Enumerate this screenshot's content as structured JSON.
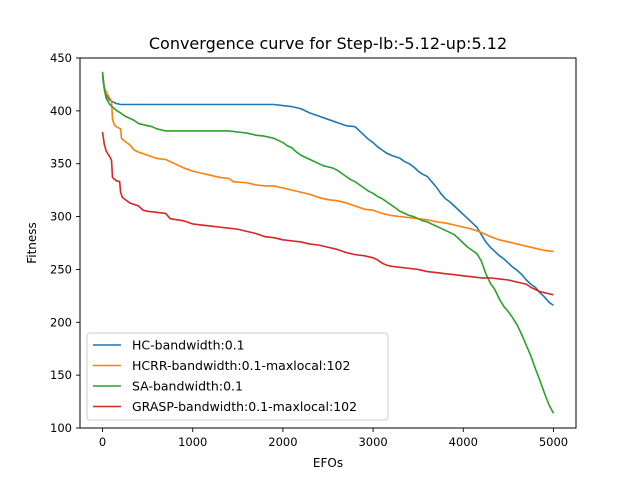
{
  "chart_data": {
    "type": "line",
    "title": "Convergence curve for Step-lb:-5.12-up:5.12",
    "xlabel": "EFOs",
    "ylabel": "Fitness",
    "xlim": [
      -250,
      5250
    ],
    "ylim": [
      100,
      450
    ],
    "xticks": [
      0,
      1000,
      2000,
      3000,
      4000,
      5000
    ],
    "yticks": [
      100,
      150,
      200,
      250,
      300,
      350,
      400,
      450
    ],
    "grid": false,
    "legend_position": "lower-left",
    "series": [
      {
        "name": "HC-bandwidth:0.1",
        "color": "#1f77b4",
        "points": [
          [
            0,
            432
          ],
          [
            20,
            421
          ],
          [
            40,
            415
          ],
          [
            80,
            410
          ],
          [
            150,
            407
          ],
          [
            200,
            406
          ],
          [
            300,
            406
          ],
          [
            500,
            406
          ],
          [
            1000,
            406
          ],
          [
            1500,
            406
          ],
          [
            1900,
            406
          ],
          [
            2000,
            405
          ],
          [
            2100,
            404
          ],
          [
            2200,
            402
          ],
          [
            2300,
            398
          ],
          [
            2400,
            395
          ],
          [
            2500,
            392
          ],
          [
            2600,
            389
          ],
          [
            2700,
            386
          ],
          [
            2800,
            385
          ],
          [
            2850,
            381
          ],
          [
            2900,
            377
          ],
          [
            2950,
            373
          ],
          [
            3000,
            370
          ],
          [
            3050,
            366
          ],
          [
            3100,
            363
          ],
          [
            3150,
            360
          ],
          [
            3200,
            358
          ],
          [
            3300,
            355
          ],
          [
            3350,
            352
          ],
          [
            3400,
            350
          ],
          [
            3450,
            347
          ],
          [
            3500,
            343
          ],
          [
            3550,
            340
          ],
          [
            3600,
            338
          ],
          [
            3650,
            333
          ],
          [
            3700,
            328
          ],
          [
            3750,
            322
          ],
          [
            3800,
            317
          ],
          [
            3850,
            314
          ],
          [
            3900,
            310
          ],
          [
            3950,
            306
          ],
          [
            4000,
            302
          ],
          [
            4050,
            298
          ],
          [
            4100,
            294
          ],
          [
            4150,
            290
          ],
          [
            4200,
            283
          ],
          [
            4250,
            276
          ],
          [
            4300,
            271
          ],
          [
            4350,
            267
          ],
          [
            4400,
            263
          ],
          [
            4450,
            260
          ],
          [
            4500,
            256
          ],
          [
            4550,
            252
          ],
          [
            4600,
            249
          ],
          [
            4650,
            245
          ],
          [
            4700,
            240
          ],
          [
            4750,
            236
          ],
          [
            4800,
            233
          ],
          [
            4850,
            228
          ],
          [
            4900,
            224
          ],
          [
            4950,
            219
          ],
          [
            5000,
            216
          ]
        ]
      },
      {
        "name": "HCRR-bandwidth:0.1-maxlocal:102",
        "color": "#ff7f0e",
        "points": [
          [
            0,
            435
          ],
          [
            20,
            422
          ],
          [
            50,
            416
          ],
          [
            80,
            412
          ],
          [
            100,
            409
          ],
          [
            110,
            392
          ],
          [
            130,
            387
          ],
          [
            150,
            385
          ],
          [
            200,
            383
          ],
          [
            210,
            374
          ],
          [
            250,
            371
          ],
          [
            300,
            368
          ],
          [
            350,
            363
          ],
          [
            400,
            361
          ],
          [
            500,
            358
          ],
          [
            600,
            355
          ],
          [
            700,
            354
          ],
          [
            800,
            350
          ],
          [
            900,
            346
          ],
          [
            1000,
            343
          ],
          [
            1100,
            341
          ],
          [
            1200,
            339
          ],
          [
            1300,
            337
          ],
          [
            1400,
            336
          ],
          [
            1450,
            333
          ],
          [
            1600,
            332
          ],
          [
            1700,
            330
          ],
          [
            1800,
            329
          ],
          [
            1900,
            329
          ],
          [
            2000,
            327
          ],
          [
            2100,
            325
          ],
          [
            2200,
            323
          ],
          [
            2300,
            321
          ],
          [
            2400,
            318
          ],
          [
            2500,
            316
          ],
          [
            2600,
            315
          ],
          [
            2700,
            313
          ],
          [
            2800,
            310
          ],
          [
            2900,
            307
          ],
          [
            3000,
            306
          ],
          [
            3100,
            303
          ],
          [
            3200,
            301
          ],
          [
            3300,
            300
          ],
          [
            3400,
            299
          ],
          [
            3500,
            298
          ],
          [
            3600,
            297
          ],
          [
            3700,
            295
          ],
          [
            3800,
            294
          ],
          [
            3900,
            292
          ],
          [
            4000,
            290
          ],
          [
            4100,
            288
          ],
          [
            4200,
            285
          ],
          [
            4300,
            281
          ],
          [
            4400,
            278
          ],
          [
            4500,
            276
          ],
          [
            4600,
            274
          ],
          [
            4700,
            272
          ],
          [
            4800,
            270
          ],
          [
            4900,
            268
          ],
          [
            5000,
            267
          ]
        ]
      },
      {
        "name": "SA-bandwidth:0.1",
        "color": "#2ca02c",
        "points": [
          [
            0,
            437
          ],
          [
            20,
            420
          ],
          [
            40,
            412
          ],
          [
            80,
            406
          ],
          [
            120,
            403
          ],
          [
            160,
            400
          ],
          [
            200,
            398
          ],
          [
            250,
            395
          ],
          [
            300,
            393
          ],
          [
            350,
            391
          ],
          [
            400,
            388
          ],
          [
            450,
            387
          ],
          [
            500,
            386
          ],
          [
            550,
            385
          ],
          [
            600,
            383
          ],
          [
            650,
            382
          ],
          [
            700,
            381
          ],
          [
            800,
            381
          ],
          [
            1000,
            381
          ],
          [
            1200,
            381
          ],
          [
            1400,
            381
          ],
          [
            1500,
            380
          ],
          [
            1600,
            379
          ],
          [
            1700,
            377
          ],
          [
            1800,
            376
          ],
          [
            1900,
            374
          ],
          [
            1950,
            372
          ],
          [
            2000,
            370
          ],
          [
            2050,
            367
          ],
          [
            2100,
            365
          ],
          [
            2150,
            361
          ],
          [
            2200,
            358
          ],
          [
            2250,
            356
          ],
          [
            2300,
            354
          ],
          [
            2350,
            352
          ],
          [
            2400,
            350
          ],
          [
            2450,
            348
          ],
          [
            2500,
            347
          ],
          [
            2550,
            346
          ],
          [
            2600,
            344
          ],
          [
            2650,
            341
          ],
          [
            2700,
            338
          ],
          [
            2750,
            335
          ],
          [
            2800,
            333
          ],
          [
            2850,
            330
          ],
          [
            2900,
            327
          ],
          [
            2950,
            324
          ],
          [
            3000,
            322
          ],
          [
            3050,
            319
          ],
          [
            3100,
            317
          ],
          [
            3150,
            314
          ],
          [
            3200,
            311
          ],
          [
            3250,
            308
          ],
          [
            3300,
            305
          ],
          [
            3350,
            303
          ],
          [
            3400,
            301
          ],
          [
            3450,
            300
          ],
          [
            3500,
            298
          ],
          [
            3550,
            296
          ],
          [
            3600,
            295
          ],
          [
            3650,
            293
          ],
          [
            3700,
            291
          ],
          [
            3750,
            289
          ],
          [
            3800,
            287
          ],
          [
            3850,
            285
          ],
          [
            3900,
            283
          ],
          [
            3950,
            279
          ],
          [
            4000,
            275
          ],
          [
            4050,
            271
          ],
          [
            4100,
            268
          ],
          [
            4150,
            265
          ],
          [
            4200,
            258
          ],
          [
            4250,
            246
          ],
          [
            4300,
            237
          ],
          [
            4350,
            231
          ],
          [
            4400,
            222
          ],
          [
            4450,
            215
          ],
          [
            4500,
            210
          ],
          [
            4550,
            204
          ],
          [
            4600,
            197
          ],
          [
            4650,
            188
          ],
          [
            4700,
            178
          ],
          [
            4750,
            168
          ],
          [
            4800,
            156
          ],
          [
            4850,
            145
          ],
          [
            4900,
            133
          ],
          [
            4950,
            122
          ],
          [
            5000,
            114
          ]
        ]
      },
      {
        "name": "GRASP-bandwidth:0.1-maxlocal:102",
        "color": "#d62728",
        "points": [
          [
            0,
            380
          ],
          [
            20,
            368
          ],
          [
            40,
            362
          ],
          [
            70,
            358
          ],
          [
            90,
            355
          ],
          [
            100,
            353
          ],
          [
            110,
            337
          ],
          [
            150,
            334
          ],
          [
            190,
            333
          ],
          [
            200,
            323
          ],
          [
            220,
            318
          ],
          [
            300,
            313
          ],
          [
            400,
            310
          ],
          [
            450,
            306
          ],
          [
            500,
            305
          ],
          [
            600,
            304
          ],
          [
            700,
            303
          ],
          [
            750,
            298
          ],
          [
            900,
            296
          ],
          [
            1000,
            293
          ],
          [
            1100,
            292
          ],
          [
            1200,
            291
          ],
          [
            1300,
            290
          ],
          [
            1400,
            289
          ],
          [
            1500,
            288
          ],
          [
            1600,
            286
          ],
          [
            1700,
            284
          ],
          [
            1800,
            281
          ],
          [
            1900,
            280
          ],
          [
            2000,
            278
          ],
          [
            2100,
            277
          ],
          [
            2200,
            276
          ],
          [
            2300,
            274
          ],
          [
            2400,
            273
          ],
          [
            2500,
            271
          ],
          [
            2600,
            269
          ],
          [
            2700,
            266
          ],
          [
            2800,
            264
          ],
          [
            2900,
            263
          ],
          [
            3000,
            261
          ],
          [
            3050,
            259
          ],
          [
            3100,
            256
          ],
          [
            3150,
            254
          ],
          [
            3200,
            253
          ],
          [
            3300,
            252
          ],
          [
            3400,
            251
          ],
          [
            3500,
            250
          ],
          [
            3600,
            248
          ],
          [
            3700,
            247
          ],
          [
            3800,
            246
          ],
          [
            3900,
            245
          ],
          [
            4000,
            244
          ],
          [
            4100,
            243
          ],
          [
            4200,
            242
          ],
          [
            4300,
            242
          ],
          [
            4400,
            241
          ],
          [
            4500,
            240
          ],
          [
            4600,
            238
          ],
          [
            4700,
            236
          ],
          [
            4750,
            233
          ],
          [
            4800,
            231
          ],
          [
            4850,
            229
          ],
          [
            4900,
            228
          ],
          [
            4950,
            227
          ],
          [
            5000,
            226
          ]
        ]
      }
    ]
  }
}
